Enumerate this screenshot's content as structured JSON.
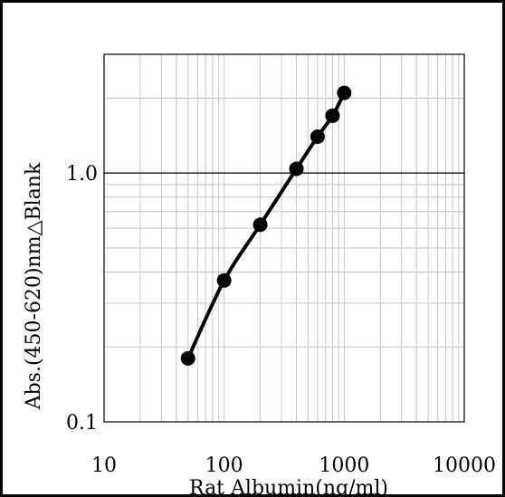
{
  "chart_data": {
    "type": "line",
    "title": "",
    "xlabel": "Rat Albumin(ng/ml)",
    "ylabel": "Abs.(450-620)nm△Blank",
    "x_scale": "log",
    "y_scale": "log",
    "xlim": [
      10,
      10000
    ],
    "ylim": [
      0.1,
      3.0
    ],
    "x_tick_labels": [
      "10",
      "100",
      "1000",
      "10000"
    ],
    "y_tick_labels": [
      "0.1",
      "1.0"
    ],
    "grid": true,
    "legend": "none",
    "series": [
      {
        "x": [
          50,
          100,
          200,
          400,
          600,
          800,
          1000
        ],
        "y": [
          0.18,
          0.37,
          0.62,
          1.04,
          1.4,
          1.7,
          2.1
        ]
      }
    ]
  },
  "colors": {
    "line": "#000000",
    "marker": "#000000",
    "grid_minor": "#c8c8c8",
    "grid_major": "#000000",
    "frame": "#000000",
    "background": "#ffffff"
  }
}
